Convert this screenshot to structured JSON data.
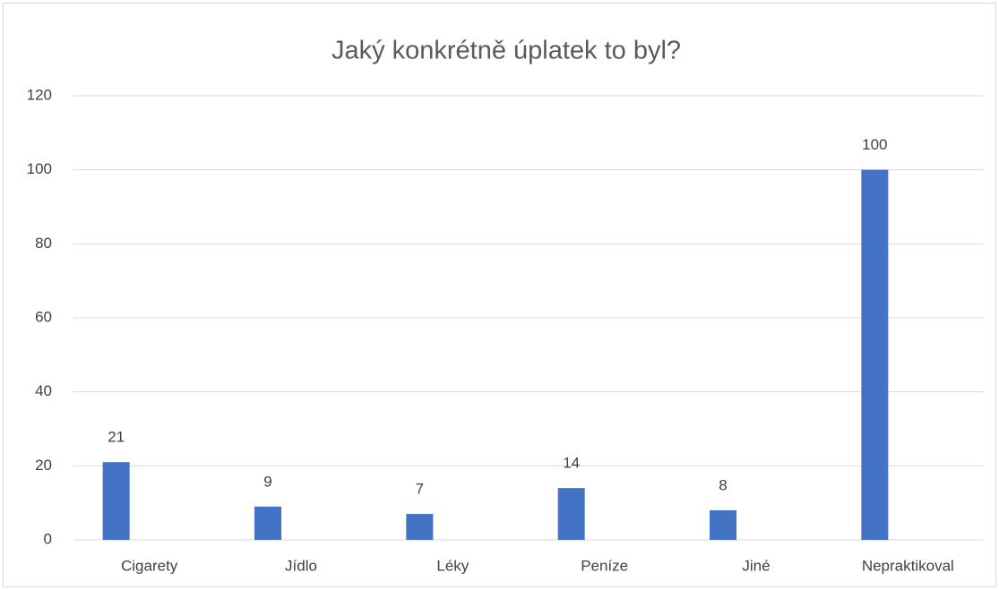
{
  "chart_data": {
    "type": "bar",
    "title": "Jaký konkrétně úplatek to byl?",
    "categories": [
      "Cigarety",
      "Jídlo",
      "Léky",
      "Peníze",
      "Jiné",
      "Nepraktikoval"
    ],
    "values": [
      21,
      9,
      7,
      14,
      8,
      100
    ],
    "color": "#4472c4",
    "ylim": [
      0,
      120
    ],
    "yticks": [
      0,
      20,
      40,
      60,
      80,
      100,
      120
    ],
    "grid": true
  }
}
